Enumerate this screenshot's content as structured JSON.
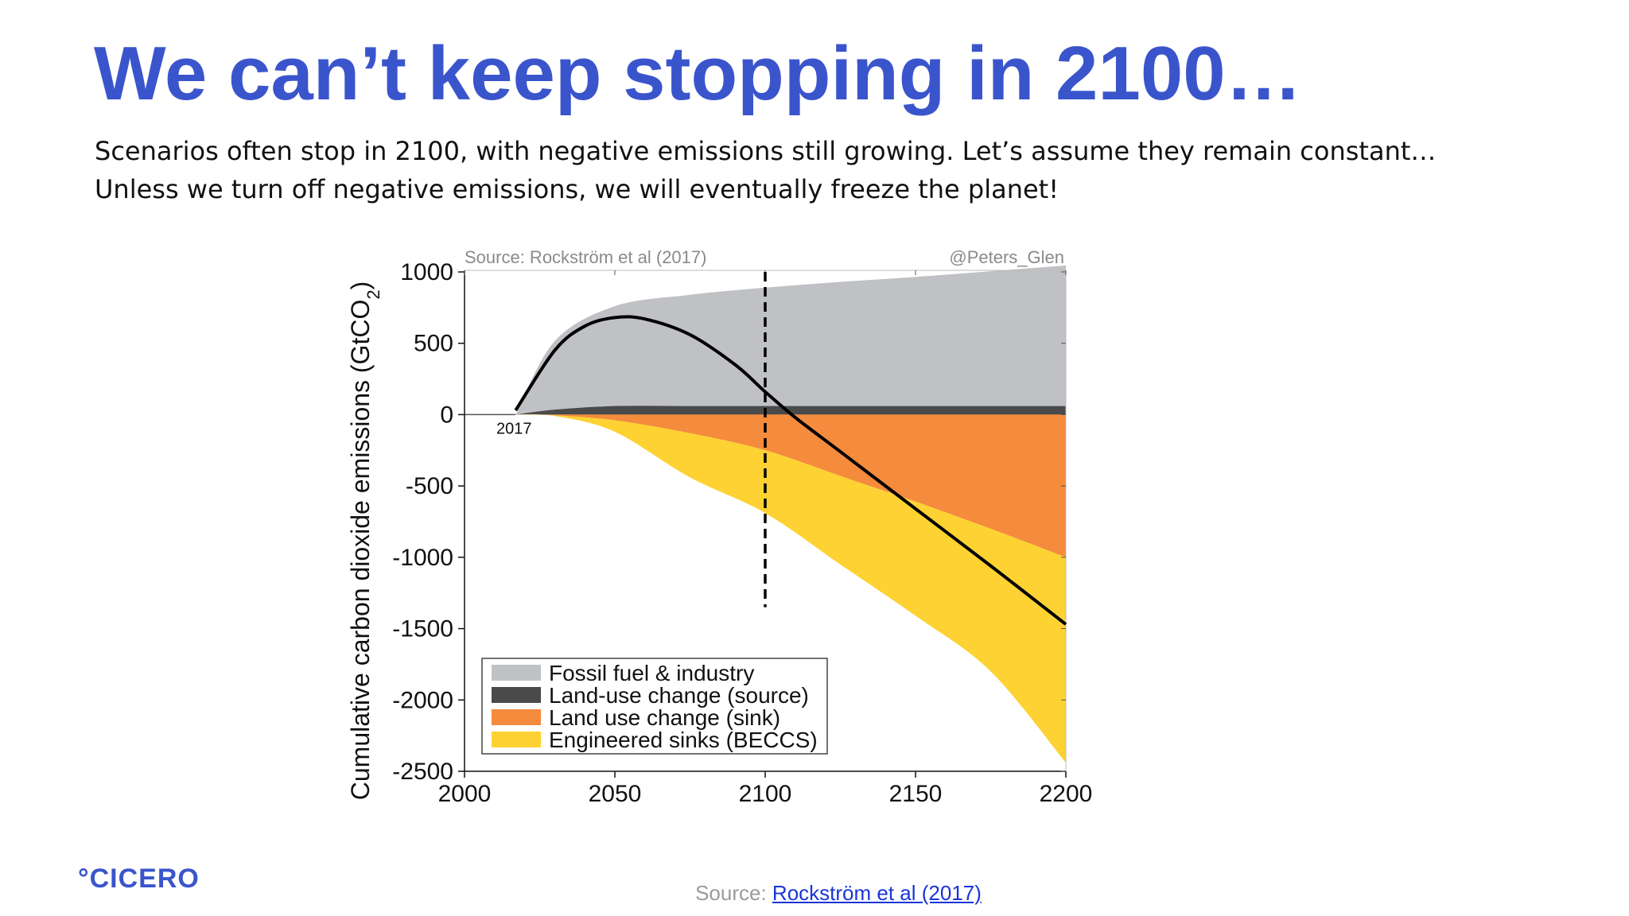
{
  "slide": {
    "title": "We can’t keep stopping in 2100…",
    "subtitle_lines": [
      "Scenarios often stop in 2100, with negative emissions still growing. Let’s assume they remain constant…",
      "Unless we turn off negative emissions, we will eventually freeze the planet!"
    ],
    "logo": "°CICERO",
    "footer_prefix": "Source: ",
    "footer_link": "Rockström et al (2017)"
  },
  "colors": {
    "title": "#3a55cc",
    "fossil": "#bfc1c4",
    "landuse_source": "#4a4a4a",
    "landuse_sink": "#f48b3d",
    "beccs": "#fdd232",
    "net_line": "#000000"
  },
  "chart_data": {
    "type": "area",
    "source_note": "Source: Rockström et al (2017)",
    "credit_note": "@Peters_Glen",
    "ylabel": "Cumulative carbon dioxide emissions (GtCO",
    "ylabel_sub": "2",
    "ylabel_close": ")",
    "xlim": [
      2000,
      2200
    ],
    "ylim": [
      -2500,
      1000
    ],
    "xticks": [
      2000,
      2050,
      2100,
      2150,
      2200
    ],
    "yticks": [
      1000,
      500,
      0,
      -500,
      -1000,
      -1500,
      -2000,
      -2500
    ],
    "start_label": "2017",
    "x": [
      2017,
      2030,
      2050,
      2075,
      2100,
      2125,
      2150,
      2175,
      2200
    ],
    "series": [
      {
        "name": "Fossil fuel & industry",
        "key": "fossil",
        "values": [
          0,
          480,
          700,
          780,
          830,
          870,
          905,
          945,
          985
        ]
      },
      {
        "name": "Land-use change (source)",
        "key": "landuse_source",
        "values": [
          0,
          35,
          60,
          60,
          60,
          60,
          60,
          60,
          60
        ]
      },
      {
        "name": "Land use change (sink)",
        "key": "landuse_sink",
        "values": [
          0,
          -5,
          -40,
          -130,
          -250,
          -430,
          -610,
          -800,
          -1000
        ]
      },
      {
        "name": "Engineered sinks (BECCS)",
        "key": "beccs",
        "values": [
          0,
          -5,
          -80,
          -310,
          -440,
          -620,
          -800,
          -1000,
          -1440
        ]
      }
    ],
    "net_line": {
      "x": [
        2017,
        2030,
        2040,
        2050,
        2060,
        2075,
        2090,
        2100,
        2110,
        2125,
        2150,
        2175,
        2200
      ],
      "values": [
        30,
        450,
        620,
        680,
        670,
        560,
        350,
        160,
        -20,
        -260,
        -660,
        -1060,
        -1470
      ]
    },
    "cutoff_year": 2100,
    "cutoff_range": [
      -1350,
      1000
    ],
    "legend_position": "bottom-left"
  }
}
